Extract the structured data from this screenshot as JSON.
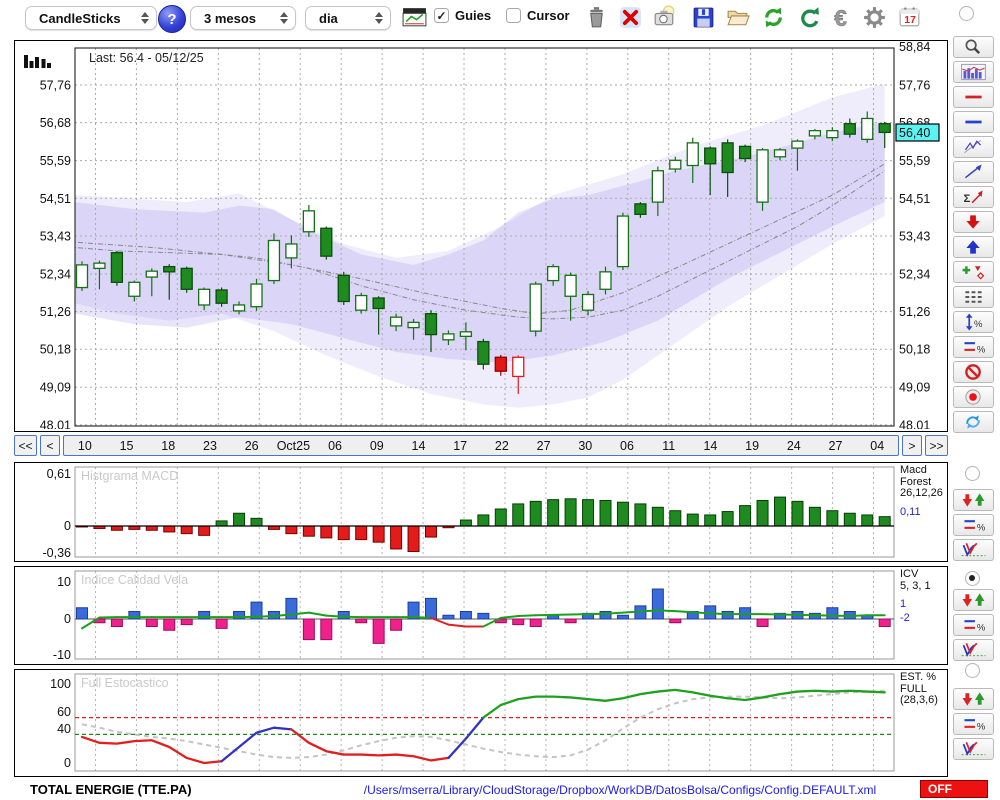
{
  "toolbar": {
    "chart_type": "CandleSticks",
    "help_label": "?",
    "period": "3 mesos",
    "timeframe": "dia",
    "guies_label": "Guies",
    "cursor_label": "Cursor",
    "calendar_day": "17",
    "icons": [
      "mini-chart-icon",
      "trash-icon",
      "delete-icon",
      "snapshot-icon",
      "save-icon",
      "open-folder-icon",
      "refresh-icon",
      "reload-icon",
      "euro-icon",
      "settings-icon",
      "calendar-icon"
    ]
  },
  "main_chart": {
    "last_label": "Last: 56.4 - 05/12/25",
    "price_tag": "56,40",
    "y_labels_left": [
      "57,76",
      "56,68",
      "55,59",
      "54,51",
      "53,43",
      "52,34",
      "51,26",
      "50,18",
      "49,09",
      "48,01"
    ],
    "y_top_right": "58,84",
    "x_labels": [
      "10",
      "15",
      "18",
      "23",
      "26",
      "Oct25",
      "06",
      "09",
      "14",
      "17",
      "22",
      "27",
      "30",
      "06",
      "11",
      "14",
      "19",
      "24",
      "27",
      "04"
    ],
    "nav_first": "<<",
    "nav_prev": "<",
    "nav_next": ">",
    "nav_last": ">>"
  },
  "macd_panel": {
    "title": "Histgrama MACD",
    "y_labels": [
      "0,61",
      "0",
      "-0,36"
    ],
    "legend1": "Macd",
    "legend2": "Forest",
    "params": "26,12,26",
    "value": "0,11"
  },
  "icv_panel": {
    "title": "Indice Calidad Vela",
    "y_labels": [
      "10",
      "0",
      "-10"
    ],
    "legend1": "ICV",
    "params": "5, 3, 1",
    "value1": "1",
    "value2": "-2"
  },
  "stoch_panel": {
    "title": "Full Estocastico",
    "y_labels": [
      "100",
      "60",
      "40",
      "0"
    ],
    "legend1": "EST. %",
    "legend2": "FULL",
    "params": "(28,3,6)"
  },
  "status_bar": {
    "symbol": "TOTAL ENERGIE (TTE.PA)",
    "path": "/Users/mserra/Library/CloudStorage/Dropbox/WorkDB/DatosBolsa/Configs/Config.DEFAULT.xml",
    "off_label": "OFF"
  },
  "sidebar": {
    "tools": [
      "zoom-tool",
      "chart-preview",
      "red-hline-tool",
      "blue-hline-tool",
      "channel-tool",
      "trendline-tool",
      "sum-trend-tool",
      "sell-arrow-tool",
      "buy-arrow-tool",
      "add-marker-tool",
      "dashed-lines-tool",
      "measure-percent-tool",
      "lines-percent-tool",
      "disable-tool",
      "record-button",
      "sync-tool"
    ],
    "groups": [
      {
        "panel": "macd",
        "selected": false
      },
      {
        "panel": "icv",
        "selected": true
      },
      {
        "panel": "stoch",
        "selected": false
      }
    ],
    "group_buttons": [
      "arrows-tool",
      "lines-percent-tool",
      "curves-tool"
    ]
  },
  "colors": {
    "accent_blue": "#4a74cc",
    "candle_green": "#1f8a1f",
    "candle_red": "#e01818",
    "bar_blue": "#3a6bdc",
    "bar_pink": "#f0218e",
    "line_green": "#1aa11a",
    "line_red": "#e02020",
    "line_blue": "#3333c0",
    "band_purple": "#8d7fe8",
    "tag_cyan": "#5df2f2",
    "off_red": "#ee1111"
  },
  "chart_data": [
    {
      "type": "candlestick",
      "title": "TOTAL ENERGIE (TTE.PA)",
      "last": 56.4,
      "last_date": "05/12/25",
      "ylim": [
        47.9,
        58.84
      ],
      "y_ticks": [
        57.76,
        56.68,
        55.59,
        54.51,
        53.43,
        52.34,
        51.26,
        50.18,
        49.09,
        48.01
      ],
      "x_ticks": [
        "10",
        "15",
        "18",
        "23",
        "26",
        "Oct25",
        "06",
        "09",
        "14",
        "17",
        "22",
        "27",
        "30",
        "06",
        "11",
        "14",
        "19",
        "24",
        "27",
        "04"
      ],
      "candles": [
        [
          51.95,
          52.7,
          51.85,
          52.6,
          "w"
        ],
        [
          52.5,
          52.72,
          51.9,
          52.65,
          "w"
        ],
        [
          52.95,
          53.0,
          52.0,
          52.1,
          "g"
        ],
        [
          51.7,
          52.15,
          51.55,
          52.1,
          "w"
        ],
        [
          52.25,
          52.5,
          51.7,
          52.42,
          "w"
        ],
        [
          52.55,
          52.62,
          51.6,
          52.4,
          "g"
        ],
        [
          52.5,
          52.55,
          51.8,
          51.9,
          "g"
        ],
        [
          51.45,
          51.95,
          51.3,
          51.9,
          "w"
        ],
        [
          51.88,
          51.95,
          51.4,
          51.5,
          "g"
        ],
        [
          51.28,
          51.55,
          51.18,
          51.45,
          "w"
        ],
        [
          51.4,
          52.2,
          51.28,
          52.05,
          "w"
        ],
        [
          52.15,
          53.5,
          52.05,
          53.3,
          "w"
        ],
        [
          52.8,
          53.45,
          52.5,
          53.2,
          "w"
        ],
        [
          53.55,
          54.32,
          53.4,
          54.15,
          "w"
        ],
        [
          53.65,
          53.7,
          52.75,
          52.85,
          "g"
        ],
        [
          52.3,
          52.4,
          51.45,
          51.55,
          "g"
        ],
        [
          51.3,
          51.8,
          51.2,
          51.72,
          "w"
        ],
        [
          51.65,
          51.7,
          50.6,
          51.35,
          "g"
        ],
        [
          50.85,
          51.2,
          50.7,
          51.1,
          "w"
        ],
        [
          50.8,
          51.05,
          50.45,
          50.95,
          "w"
        ],
        [
          51.2,
          51.3,
          50.1,
          50.6,
          "g"
        ],
        [
          50.45,
          50.72,
          50.3,
          50.62,
          "w"
        ],
        [
          50.55,
          50.95,
          50.15,
          50.68,
          "w"
        ],
        [
          50.4,
          50.48,
          49.6,
          49.75,
          "g"
        ],
        [
          49.95,
          50.02,
          49.42,
          49.55,
          "r"
        ],
        [
          49.4,
          50.0,
          48.9,
          49.95,
          "wr"
        ],
        [
          50.7,
          52.12,
          50.55,
          52.05,
          "w"
        ],
        [
          52.15,
          52.62,
          52.0,
          52.55,
          "w"
        ],
        [
          51.7,
          52.38,
          51.0,
          52.3,
          "w"
        ],
        [
          51.3,
          51.85,
          51.15,
          51.75,
          "w"
        ],
        [
          51.9,
          52.55,
          51.75,
          52.4,
          "w"
        ],
        [
          52.55,
          54.1,
          52.45,
          54.0,
          "w"
        ],
        [
          54.35,
          54.4,
          53.95,
          54.05,
          "g"
        ],
        [
          54.4,
          55.42,
          54.0,
          55.3,
          "w"
        ],
        [
          55.35,
          55.7,
          55.25,
          55.6,
          "w"
        ],
        [
          55.45,
          56.25,
          54.95,
          56.1,
          "w"
        ],
        [
          55.95,
          56.0,
          54.6,
          55.5,
          "g"
        ],
        [
          56.1,
          56.2,
          54.55,
          55.25,
          "g"
        ],
        [
          56.0,
          56.05,
          55.55,
          55.65,
          "g"
        ],
        [
          54.4,
          55.95,
          54.15,
          55.9,
          "w"
        ],
        [
          55.7,
          55.95,
          55.6,
          55.9,
          "w"
        ],
        [
          55.95,
          56.2,
          55.3,
          56.15,
          "w"
        ],
        [
          56.3,
          56.5,
          56.2,
          56.45,
          "w"
        ],
        [
          56.25,
          56.55,
          56.15,
          56.45,
          "w"
        ],
        [
          56.65,
          56.8,
          56.25,
          56.35,
          "g"
        ],
        [
          56.2,
          57.0,
          56.1,
          56.8,
          "w"
        ],
        [
          56.65,
          56.7,
          55.95,
          56.4,
          "g"
        ]
      ],
      "band_outer": {
        "upper": [
          [
            -0.4,
            54.6
          ],
          [
            3,
            54.5
          ],
          [
            6,
            54.4
          ],
          [
            9,
            54.65
          ],
          [
            12,
            53.9
          ],
          [
            15,
            53.2
          ],
          [
            18,
            52.8
          ],
          [
            21,
            53.0
          ],
          [
            24,
            53.7
          ],
          [
            27,
            54.6
          ],
          [
            29,
            54.9
          ],
          [
            31,
            55.2
          ],
          [
            33,
            55.6
          ],
          [
            35,
            56.0
          ],
          [
            37,
            56.3
          ],
          [
            39,
            56.6
          ],
          [
            41,
            57.0
          ],
          [
            43,
            57.4
          ],
          [
            46,
            57.8
          ]
        ],
        "lower": [
          [
            -0.4,
            51.5
          ],
          [
            2,
            51.2
          ],
          [
            5,
            51.0
          ],
          [
            8,
            51.2
          ],
          [
            11,
            50.7
          ],
          [
            14,
            50.0
          ],
          [
            17,
            49.4
          ],
          [
            20,
            48.9
          ],
          [
            23,
            48.6
          ],
          [
            25,
            48.5
          ],
          [
            27,
            48.6
          ],
          [
            29,
            48.8
          ],
          [
            31,
            49.3
          ],
          [
            33,
            50.0
          ],
          [
            35,
            50.7
          ],
          [
            37,
            51.4
          ],
          [
            39,
            52.0
          ],
          [
            41,
            52.6
          ],
          [
            43,
            53.2
          ],
          [
            46,
            54.0
          ]
        ]
      },
      "band_inner": {
        "upper": [
          [
            -0.4,
            54.4
          ],
          [
            3,
            54.2
          ],
          [
            7,
            54.1
          ],
          [
            9,
            54.3
          ],
          [
            11,
            54.2
          ],
          [
            13,
            53.6
          ],
          [
            16,
            52.9
          ],
          [
            19,
            52.6
          ],
          [
            21,
            52.9
          ],
          [
            23,
            53.3
          ],
          [
            25,
            54.1
          ],
          [
            27,
            54.5
          ],
          [
            29,
            54.6
          ],
          [
            32,
            55.0
          ],
          [
            34,
            55.3
          ],
          [
            36,
            55.5
          ],
          [
            38,
            55.7
          ],
          [
            41,
            56.1
          ],
          [
            43,
            56.4
          ],
          [
            46,
            56.7
          ]
        ],
        "lower": [
          [
            -0.4,
            51.2
          ],
          [
            3,
            50.9
          ],
          [
            6,
            50.8
          ],
          [
            9,
            51.1
          ],
          [
            12,
            50.9
          ],
          [
            15,
            50.5
          ],
          [
            18,
            50.1
          ],
          [
            21,
            49.9
          ],
          [
            24,
            49.8
          ],
          [
            27,
            50.0
          ],
          [
            30,
            50.4
          ],
          [
            33,
            51.0
          ],
          [
            35,
            51.6
          ],
          [
            37,
            52.2
          ],
          [
            39,
            52.7
          ],
          [
            41,
            53.2
          ],
          [
            43,
            53.7
          ],
          [
            46,
            54.4
          ]
        ]
      },
      "midlines": [
        [
          [
            -0.4,
            53.1
          ],
          [
            2,
            53.0
          ],
          [
            5,
            52.95
          ],
          [
            8,
            52.9
          ],
          [
            10,
            52.8
          ],
          [
            13,
            52.5
          ],
          [
            16,
            52.0
          ],
          [
            19,
            51.6
          ],
          [
            22,
            51.3
          ],
          [
            25,
            51.1
          ],
          [
            27,
            51.05
          ],
          [
            29,
            51.1
          ],
          [
            31,
            51.3
          ],
          [
            33,
            51.7
          ],
          [
            35,
            52.2
          ],
          [
            37,
            52.7
          ],
          [
            39,
            53.2
          ],
          [
            41,
            53.7
          ],
          [
            43,
            54.3
          ],
          [
            46,
            55.3
          ]
        ],
        [
          [
            -0.4,
            53.25
          ],
          [
            4,
            53.1
          ],
          [
            8,
            52.9
          ],
          [
            12,
            52.6
          ],
          [
            16,
            52.2
          ],
          [
            20,
            51.75
          ],
          [
            24,
            51.35
          ],
          [
            26,
            51.2
          ],
          [
            28,
            51.3
          ],
          [
            31,
            51.8
          ],
          [
            34,
            52.5
          ],
          [
            37,
            53.2
          ],
          [
            40,
            53.9
          ],
          [
            43,
            54.6
          ],
          [
            46,
            55.5
          ]
        ]
      ]
    },
    {
      "type": "bar",
      "name": "Histograma MACD",
      "params": "26,12,26",
      "last_value": 0.11,
      "ylim": [
        -0.36,
        0.61
      ],
      "values": [
        -0.01,
        -0.03,
        -0.05,
        -0.04,
        -0.05,
        -0.07,
        -0.09,
        -0.11,
        0.06,
        0.15,
        0.09,
        -0.04,
        -0.09,
        -0.12,
        -0.14,
        -0.16,
        -0.16,
        -0.19,
        -0.27,
        -0.3,
        -0.13,
        -0.02,
        0.07,
        0.13,
        0.2,
        0.26,
        0.29,
        0.31,
        0.32,
        0.31,
        0.3,
        0.28,
        0.26,
        0.22,
        0.18,
        0.14,
        0.13,
        0.17,
        0.24,
        0.3,
        0.34,
        0.29,
        0.22,
        0.18,
        0.15,
        0.13,
        0.11
      ]
    },
    {
      "type": "bar+line",
      "name": "Indice Calidad Vela",
      "params": "5, 3, 1",
      "last_line": 1,
      "last_bar": -2,
      "ylim": [
        -10,
        10
      ],
      "bars": [
        3,
        -1,
        -2,
        2,
        -2,
        -3,
        -1.5,
        2,
        -2.5,
        2,
        4.5,
        2,
        5.5,
        -5.5,
        -5.5,
        2,
        -1,
        -6.5,
        -3,
        4.5,
        5.5,
        1,
        2,
        1.5,
        -1,
        -1.5,
        -2,
        1,
        -1,
        1.5,
        2,
        1,
        3.5,
        8,
        -1,
        2,
        3.5,
        2,
        3,
        -2,
        1.5,
        2,
        1.5,
        3,
        2,
        1,
        -2
      ],
      "line": [
        -2.5,
        0.4,
        0.5,
        0.5,
        0.5,
        0.5,
        0.5,
        0.5,
        0.5,
        0.5,
        0.6,
        0.8,
        1.2,
        1.7,
        0.9,
        0.6,
        0.5,
        0.5,
        0.5,
        0.5,
        0.3,
        -1.5,
        -2.0,
        -2.0,
        0.3,
        0.8,
        1.0,
        1.1,
        1.2,
        1.3,
        1.4,
        1.7,
        2.0,
        2.3,
        2.1,
        1.8,
        1.5,
        1.3,
        1.3,
        1.3,
        1.2,
        1.1,
        1.0,
        0.9,
        0.8,
        1.0,
        1.0
      ],
      "line_red_span": [
        20,
        23
      ]
    },
    {
      "type": "line",
      "name": "Full Estocastico",
      "params": "(28,3,6)",
      "ylim": [
        0,
        100
      ],
      "levels": [
        60,
        40
      ],
      "series": [
        {
          "name": "%K",
          "values": [
            37,
            30,
            29,
            32,
            33,
            25,
            12,
            6,
            8,
            25,
            42,
            48,
            46,
            30,
            20,
            16,
            16,
            15,
            16,
            14,
            9,
            12,
            35,
            60,
            75,
            82,
            85,
            85,
            84,
            82,
            80,
            83,
            88,
            91,
            93,
            90,
            86,
            83,
            81,
            84,
            88,
            91,
            92,
            91,
            92,
            91,
            90
          ]
        },
        {
          "name": "%D",
          "values": [
            52,
            48,
            43,
            40,
            37,
            35,
            32,
            28,
            24,
            20,
            16,
            13,
            12,
            13,
            16,
            21,
            27,
            32,
            36,
            38,
            37,
            33,
            28,
            23,
            19,
            16,
            14,
            13,
            15,
            22,
            33,
            47,
            60,
            70,
            77,
            82,
            84,
            85,
            85,
            84,
            83,
            84,
            86,
            88,
            90,
            91,
            92
          ]
        }
      ],
      "k_segments": [
        [
          "red",
          0,
          8
        ],
        [
          "blue",
          8,
          12
        ],
        [
          "red",
          12,
          21
        ],
        [
          "blue",
          21,
          23
        ],
        [
          "green",
          23,
          46
        ]
      ]
    }
  ]
}
